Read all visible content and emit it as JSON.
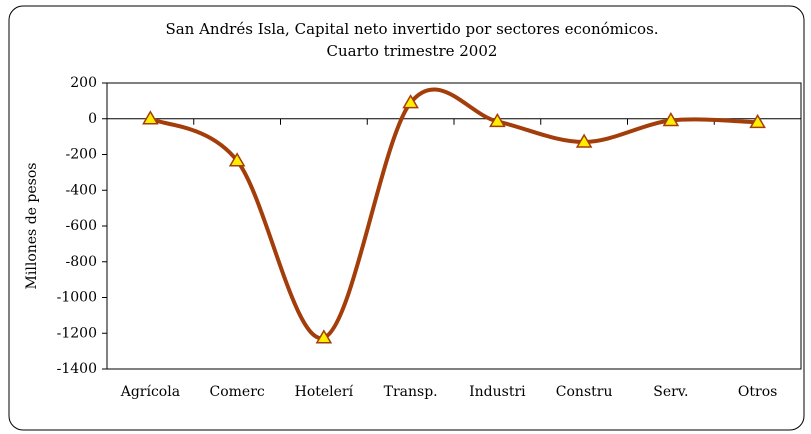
{
  "chart_data": {
    "type": "line",
    "title": "San Andrés Isla, Capital neto invertido por sectores económicos.",
    "subtitle": "Cuarto trimestre 2002",
    "y_label": "Millones de pesos",
    "categories": [
      "Agrícola",
      "Comerc",
      "Hotelerí",
      "Transp.",
      "Industri",
      "Constru",
      "Serv.",
      "Otros"
    ],
    "series": [
      {
        "name": "Capital neto invertido",
        "color": "#a33d0a",
        "values": [
          0,
          -235,
          -1225,
          90,
          -15,
          -130,
          -10,
          -20
        ]
      }
    ],
    "ylim": [
      -1400,
      200
    ],
    "yticks": [
      200,
      0,
      -200,
      -400,
      -600,
      -800,
      -1000,
      -1200,
      -1400
    ],
    "grid": false,
    "smooth": true,
    "marker_color": "#ffee00"
  }
}
